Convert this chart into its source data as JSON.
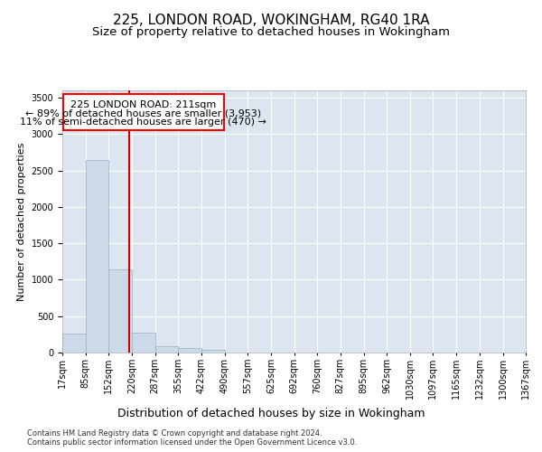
{
  "title1": "225, LONDON ROAD, WOKINGHAM, RG40 1RA",
  "title2": "Size of property relative to detached houses in Wokingham",
  "xlabel": "Distribution of detached houses by size in Wokingham",
  "ylabel": "Number of detached properties",
  "footer1": "Contains HM Land Registry data © Crown copyright and database right 2024.",
  "footer2": "Contains public sector information licensed under the Open Government Licence v3.0.",
  "annotation_title": "225 LONDON ROAD: 211sqm",
  "annotation_line1": "← 89% of detached houses are smaller (3,953)",
  "annotation_line2": "11% of semi-detached houses are larger (470) →",
  "bar_color": "#ccd9e8",
  "bar_edge_color": "#a0b8cc",
  "redline_color": "#cc0000",
  "redline_x": 211,
  "bin_edges": [
    17,
    85,
    152,
    220,
    287,
    355,
    422,
    490,
    557,
    625,
    692,
    760,
    827,
    895,
    962,
    1030,
    1097,
    1165,
    1232,
    1300,
    1367
  ],
  "bar_heights": [
    265,
    2650,
    1140,
    275,
    85,
    60,
    40,
    0,
    0,
    0,
    0,
    0,
    0,
    0,
    0,
    0,
    0,
    0,
    0,
    0
  ],
  "ylim": [
    0,
    3600
  ],
  "yticks": [
    0,
    500,
    1000,
    1500,
    2000,
    2500,
    3000,
    3500
  ],
  "background_color": "#dde6f0",
  "fig_background": "#ffffff",
  "title_fontsize": 11,
  "subtitle_fontsize": 9.5,
  "ylabel_fontsize": 8,
  "xlabel_fontsize": 9,
  "tick_label_fontsize": 7,
  "footer_fontsize": 6,
  "annotation_fontsize": 8
}
